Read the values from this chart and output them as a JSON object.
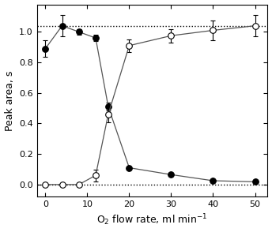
{
  "breakthrough_x": [
    0,
    4,
    8,
    12,
    15,
    20,
    30,
    40,
    50
  ],
  "breakthrough_y": [
    0.89,
    1.04,
    1.0,
    0.96,
    0.51,
    0.11,
    0.065,
    0.025,
    0.018
  ],
  "breakthrough_yerr": [
    0.055,
    0.07,
    0.02,
    0.02,
    0.025,
    0.01,
    0.01,
    0.005,
    0.005
  ],
  "trapping_x": [
    0,
    4,
    8,
    12,
    15,
    20,
    30,
    40,
    50
  ],
  "trapping_y": [
    0.0,
    0.0,
    0.0,
    0.06,
    0.46,
    0.91,
    0.975,
    1.01,
    1.04
  ],
  "trapping_yerr": [
    0.005,
    0.005,
    0.005,
    0.04,
    0.05,
    0.04,
    0.045,
    0.065,
    0.07
  ],
  "upper_dotted": 1.04,
  "lower_dotted": 0.0,
  "xlabel": "O$_2$ flow rate, ml min$^{-1}$",
  "ylabel": "Peak area, s",
  "xlim": [
    -2,
    53
  ],
  "ylim": [
    -0.08,
    1.18
  ],
  "xticks": [
    0,
    10,
    20,
    30,
    40,
    50
  ],
  "yticks": [
    0.0,
    0.2,
    0.4,
    0.6,
    0.8,
    1.0
  ],
  "marker_size": 5.5,
  "line_color": "#555555",
  "background_color": "#ffffff"
}
